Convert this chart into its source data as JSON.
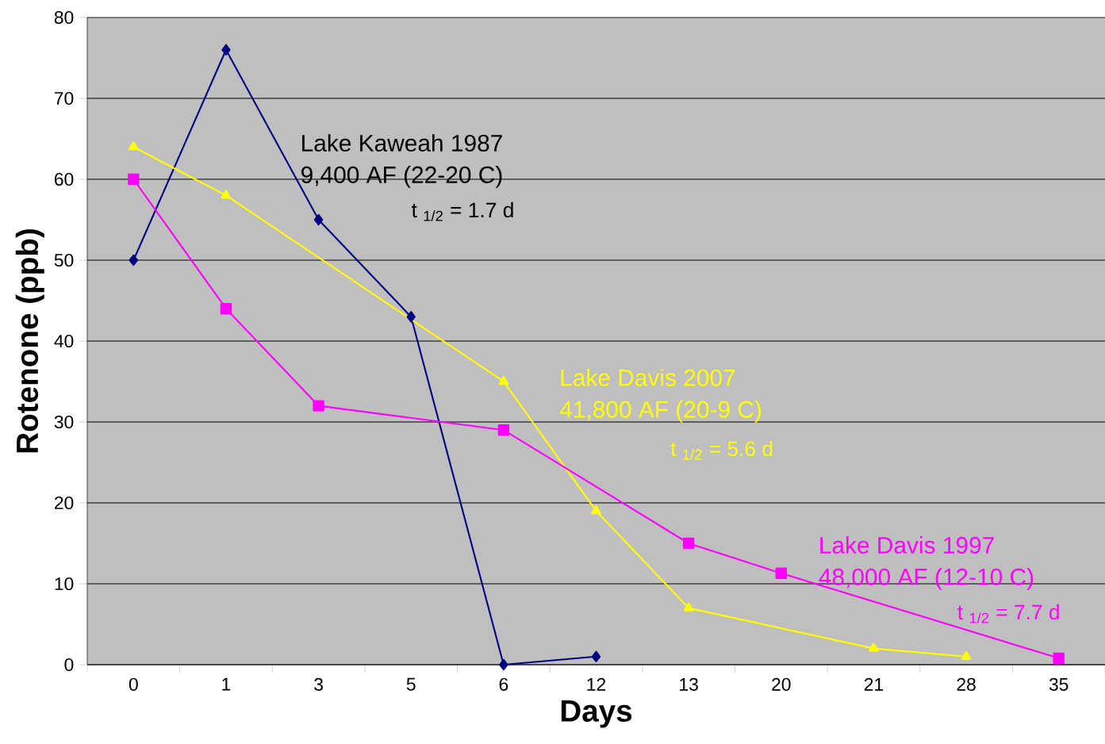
{
  "chart_data": {
    "type": "line",
    "xlabel": "Days",
    "ylabel": "Rotenone (ppb)",
    "categories": [
      "0",
      "1",
      "3",
      "5",
      "6",
      "12",
      "13",
      "20",
      "21",
      "28",
      "35"
    ],
    "series": [
      {
        "name": "Lake Kaweah 1987",
        "color": "#000080",
        "marker": "diamond",
        "values": [
          50,
          76,
          55,
          43,
          0,
          1,
          null,
          null,
          null,
          null,
          null
        ]
      },
      {
        "name": "Lake Davis 2007",
        "color": "#ffff00",
        "marker": "triangle",
        "values": [
          64,
          58,
          null,
          null,
          35,
          19,
          7,
          null,
          2,
          1,
          null
        ]
      },
      {
        "name": "Lake Davis 1997",
        "color": "#ff00ff",
        "marker": "square",
        "values": [
          60,
          44,
          32,
          null,
          29,
          null,
          15,
          11.3,
          null,
          null,
          0.8
        ]
      }
    ],
    "annotations": [
      "9,400 AF (22-20 C)",
      "t $_{1/2}$ = 1.7 d",
      "41,800 AF (20-9 C)",
      "t $_{1/2}$ = 5.6 d",
      "48,000 AF (12-10 C)",
      "t $_{1/2}$ = 7.7 d"
    ],
    "ylim": [
      0,
      80
    ],
    "yticks": [
      0,
      10,
      20,
      30,
      40,
      50,
      60,
      70,
      80
    ],
    "grid": "y"
  }
}
